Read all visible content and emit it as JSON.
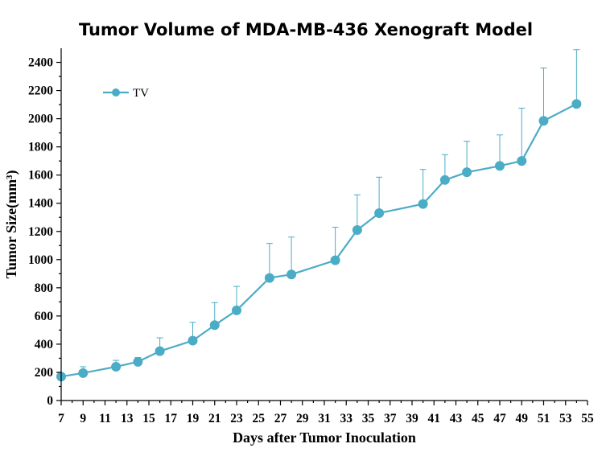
{
  "chart_data": {
    "type": "line",
    "title": "Tumor Volume of MDA-MB-436 Xenograft Model",
    "xlabel": "Days after Tumor Inoculation",
    "ylabel": "Tumor Size(mm³)",
    "xlim": [
      7,
      55
    ],
    "ylim": [
      0,
      2500
    ],
    "x_ticks": [
      "7",
      "9",
      "11",
      "13",
      "15",
      "17",
      "19",
      "21",
      "23",
      "25",
      "27",
      "29",
      "31",
      "33",
      "35",
      "37",
      "39",
      "41",
      "43",
      "45",
      "47",
      "49",
      "51",
      "53",
      "55"
    ],
    "y_ticks": [
      "0",
      "200",
      "400",
      "600",
      "800",
      "1000",
      "1200",
      "1400",
      "1600",
      "1800",
      "2000",
      "2200",
      "2400"
    ],
    "legend": "top-left",
    "grid": false,
    "color": "#4BACC6",
    "series": [
      {
        "name": "TV",
        "x": [
          7,
          9,
          12,
          14,
          16,
          19,
          21,
          23,
          26,
          28,
          32,
          34,
          36,
          40,
          42,
          44,
          47,
          49,
          51,
          54
        ],
        "y": [
          170,
          195,
          240,
          275,
          350,
          425,
          535,
          640,
          870,
          895,
          995,
          1210,
          1330,
          1395,
          1565,
          1620,
          1665,
          1700,
          1985,
          2105
        ],
        "error": [
          0,
          45,
          45,
          30,
          95,
          130,
          160,
          170,
          245,
          265,
          235,
          250,
          255,
          245,
          180,
          220,
          220,
          375,
          375,
          385
        ]
      }
    ]
  }
}
